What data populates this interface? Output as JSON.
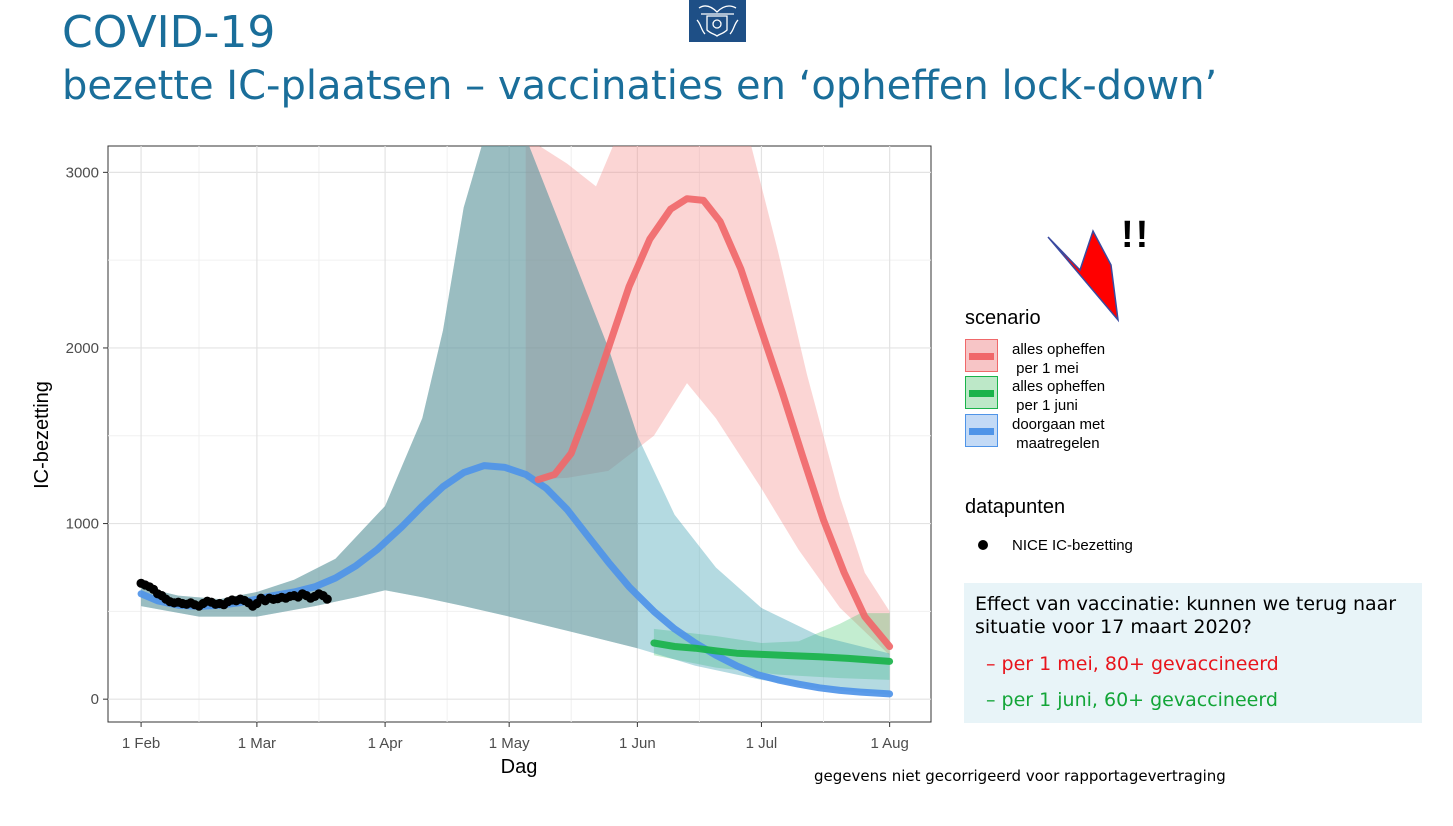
{
  "header": {
    "title": "COVID-19",
    "subtitle": "bezette IC-plaatsen – vaccinaties en ‘opheffen lock-down’"
  },
  "chart_data": {
    "type": "line",
    "xlabel": "Dag",
    "ylabel": "IC-bezetting",
    "x_ticks": [
      "1 Feb",
      "1 Mar",
      "1 Apr",
      "1 May",
      "1 Jun",
      "1 Jul",
      "1 Aug"
    ],
    "y_ticks": [
      0,
      1000,
      2000,
      3000
    ],
    "ylim": [
      -130,
      3150
    ],
    "xlim": [
      "2021-01-24",
      "2021-08-11"
    ],
    "grid": true,
    "series": [
      {
        "name": "doorgaan met maatregelen",
        "color": "#4f94e8",
        "points": [
          [
            "2021-02-01",
            600
          ],
          [
            "2021-02-05",
            560
          ],
          [
            "2021-02-10",
            535
          ],
          [
            "2021-02-15",
            528
          ],
          [
            "2021-02-20",
            535
          ],
          [
            "2021-02-25",
            550
          ],
          [
            "2021-03-01",
            570
          ],
          [
            "2021-03-05",
            590
          ],
          [
            "2021-03-10",
            610
          ],
          [
            "2021-03-15",
            640
          ],
          [
            "2021-03-20",
            690
          ],
          [
            "2021-03-25",
            760
          ],
          [
            "2021-03-30",
            850
          ],
          [
            "2021-04-05",
            980
          ],
          [
            "2021-04-10",
            1100
          ],
          [
            "2021-04-15",
            1210
          ],
          [
            "2021-04-20",
            1290
          ],
          [
            "2021-04-25",
            1330
          ],
          [
            "2021-04-30",
            1320
          ],
          [
            "2021-05-05",
            1280
          ],
          [
            "2021-05-10",
            1200
          ],
          [
            "2021-05-15",
            1080
          ],
          [
            "2021-05-20",
            930
          ],
          [
            "2021-05-25",
            780
          ],
          [
            "2021-05-30",
            640
          ],
          [
            "2021-06-05",
            500
          ],
          [
            "2021-06-10",
            400
          ],
          [
            "2021-06-15",
            320
          ],
          [
            "2021-06-20",
            250
          ],
          [
            "2021-06-25",
            190
          ],
          [
            "2021-06-30",
            140
          ],
          [
            "2021-07-05",
            110
          ],
          [
            "2021-07-10",
            85
          ],
          [
            "2021-07-15",
            65
          ],
          [
            "2021-07-20",
            50
          ],
          [
            "2021-07-25",
            40
          ],
          [
            "2021-08-01",
            30
          ]
        ],
        "band_lower": [
          [
            "2021-02-01",
            530
          ],
          [
            "2021-02-15",
            470
          ],
          [
            "2021-03-01",
            470
          ],
          [
            "2021-03-15",
            530
          ],
          [
            "2021-03-25",
            580
          ],
          [
            "2021-04-01",
            620
          ],
          [
            "2021-04-10",
            580
          ],
          [
            "2021-04-20",
            530
          ],
          [
            "2021-05-01",
            470
          ],
          [
            "2021-05-15",
            390
          ],
          [
            "2021-06-01",
            290
          ],
          [
            "2021-06-15",
            190
          ],
          [
            "2021-07-01",
            110
          ],
          [
            "2021-07-15",
            60
          ],
          [
            "2021-08-01",
            25
          ]
        ],
        "band_upper": [
          [
            "2021-02-01",
            640
          ],
          [
            "2021-02-10",
            590
          ],
          [
            "2021-02-20",
            570
          ],
          [
            "2021-03-01",
            610
          ],
          [
            "2021-03-10",
            680
          ],
          [
            "2021-03-20",
            800
          ],
          [
            "2021-04-01",
            1100
          ],
          [
            "2021-04-10",
            1600
          ],
          [
            "2021-04-15",
            2100
          ],
          [
            "2021-04-20",
            2800
          ],
          [
            "2021-04-25",
            3200
          ],
          [
            "2021-05-05",
            3200
          ],
          [
            "2021-05-15",
            2600
          ],
          [
            "2021-05-25",
            2000
          ],
          [
            "2021-06-01",
            1500
          ],
          [
            "2021-06-10",
            1050
          ],
          [
            "2021-06-20",
            750
          ],
          [
            "2021-07-01",
            520
          ],
          [
            "2021-07-15",
            360
          ],
          [
            "2021-08-01",
            260
          ]
        ]
      },
      {
        "name": "alles opheffen per 1 mei",
        "color": "#f0686a",
        "points": [
          [
            "2021-05-08",
            1250
          ],
          [
            "2021-05-12",
            1280
          ],
          [
            "2021-05-16",
            1400
          ],
          [
            "2021-05-20",
            1650
          ],
          [
            "2021-05-25",
            2000
          ],
          [
            "2021-05-30",
            2350
          ],
          [
            "2021-06-04",
            2620
          ],
          [
            "2021-06-09",
            2790
          ],
          [
            "2021-06-13",
            2850
          ],
          [
            "2021-06-17",
            2840
          ],
          [
            "2021-06-21",
            2720
          ],
          [
            "2021-06-26",
            2450
          ],
          [
            "2021-07-01",
            2100
          ],
          [
            "2021-07-06",
            1750
          ],
          [
            "2021-07-11",
            1380
          ],
          [
            "2021-07-16",
            1020
          ],
          [
            "2021-07-21",
            720
          ],
          [
            "2021-07-26",
            470
          ],
          [
            "2021-08-01",
            300
          ]
        ],
        "band_lower": [
          [
            "2021-05-05",
            1250
          ],
          [
            "2021-05-15",
            1260
          ],
          [
            "2021-05-25",
            1300
          ],
          [
            "2021-06-05",
            1500
          ],
          [
            "2021-06-13",
            1800
          ],
          [
            "2021-06-20",
            1600
          ],
          [
            "2021-07-01",
            1200
          ],
          [
            "2021-07-10",
            850
          ],
          [
            "2021-07-20",
            520
          ],
          [
            "2021-08-01",
            250
          ]
        ],
        "band_upper": [
          [
            "2021-05-05",
            3200
          ],
          [
            "2021-05-15",
            3050
          ],
          [
            "2021-05-22",
            2920
          ],
          [
            "2021-05-27",
            3200
          ],
          [
            "2021-06-28",
            3200
          ],
          [
            "2021-07-05",
            2550
          ],
          [
            "2021-07-12",
            1850
          ],
          [
            "2021-07-20",
            1150
          ],
          [
            "2021-07-26",
            720
          ],
          [
            "2021-08-01",
            500
          ]
        ]
      },
      {
        "name": "alles opheffen per 1 juni",
        "color": "#1ab34a",
        "points": [
          [
            "2021-06-05",
            320
          ],
          [
            "2021-06-10",
            300
          ],
          [
            "2021-06-15",
            290
          ],
          [
            "2021-06-20",
            275
          ],
          [
            "2021-06-25",
            262
          ],
          [
            "2021-07-01",
            255
          ],
          [
            "2021-07-08",
            248
          ],
          [
            "2021-07-15",
            242
          ],
          [
            "2021-07-22",
            232
          ],
          [
            "2021-08-01",
            215
          ]
        ],
        "band_lower": [
          [
            "2021-06-05",
            250
          ],
          [
            "2021-06-20",
            180
          ],
          [
            "2021-07-05",
            140
          ],
          [
            "2021-07-20",
            120
          ],
          [
            "2021-08-01",
            110
          ]
        ],
        "band_upper": [
          [
            "2021-06-05",
            400
          ],
          [
            "2021-06-20",
            360
          ],
          [
            "2021-07-01",
            320
          ],
          [
            "2021-07-10",
            330
          ],
          [
            "2021-07-20",
            430
          ],
          [
            "2021-07-25",
            490
          ],
          [
            "2021-08-01",
            490
          ]
        ]
      }
    ],
    "datapoints": {
      "name": "NICE IC-bezetting",
      "color": "#000000",
      "points": [
        [
          "2021-02-01",
          660
        ],
        [
          "2021-02-02",
          650
        ],
        [
          "2021-02-03",
          640
        ],
        [
          "2021-02-04",
          625
        ],
        [
          "2021-02-05",
          600
        ],
        [
          "2021-02-06",
          590
        ],
        [
          "2021-02-07",
          570
        ],
        [
          "2021-02-08",
          555
        ],
        [
          "2021-02-09",
          548
        ],
        [
          "2021-02-10",
          552
        ],
        [
          "2021-02-11",
          545
        ],
        [
          "2021-02-12",
          540
        ],
        [
          "2021-02-13",
          548
        ],
        [
          "2021-02-14",
          538
        ],
        [
          "2021-02-15",
          530
        ],
        [
          "2021-02-16",
          545
        ],
        [
          "2021-02-17",
          558
        ],
        [
          "2021-02-18",
          552
        ],
        [
          "2021-02-19",
          540
        ],
        [
          "2021-02-20",
          545
        ],
        [
          "2021-02-21",
          538
        ],
        [
          "2021-02-22",
          555
        ],
        [
          "2021-02-23",
          565
        ],
        [
          "2021-02-24",
          560
        ],
        [
          "2021-02-25",
          570
        ],
        [
          "2021-02-26",
          562
        ],
        [
          "2021-02-27",
          548
        ],
        [
          "2021-02-28",
          530
        ],
        [
          "2021-03-01",
          545
        ],
        [
          "2021-03-02",
          575
        ],
        [
          "2021-03-03",
          560
        ],
        [
          "2021-03-04",
          575
        ],
        [
          "2021-03-05",
          568
        ],
        [
          "2021-03-06",
          572
        ],
        [
          "2021-03-07",
          580
        ],
        [
          "2021-03-08",
          575
        ],
        [
          "2021-03-09",
          585
        ],
        [
          "2021-03-10",
          590
        ],
        [
          "2021-03-11",
          582
        ],
        [
          "2021-03-12",
          600
        ],
        [
          "2021-03-13",
          590
        ],
        [
          "2021-03-14",
          575
        ],
        [
          "2021-03-15",
          585
        ],
        [
          "2021-03-16",
          600
        ],
        [
          "2021-03-17",
          590
        ],
        [
          "2021-03-18",
          570
        ]
      ]
    }
  },
  "legend": {
    "scenario_title": "scenario",
    "items": [
      {
        "label": "alles opheffen\n per 1 mei",
        "color": "#f0686a",
        "fill": "#f7c5c6"
      },
      {
        "label": "alles opheffen\n per 1 juni",
        "color": "#1ab34a",
        "fill": "#bde8c8"
      },
      {
        "label": "doorgaan met\n maatregelen",
        "color": "#4f94e8",
        "fill": "#c3daf6"
      }
    ],
    "data_title": "datapunten",
    "data_label": "NICE IC-bezetting"
  },
  "annotation": {
    "exclaim": "!!",
    "arrow_color": "#ff0000"
  },
  "info": {
    "main": "Effect van vaccinatie: kunnen we terug naar situatie voor 17 maart 2020?",
    "line1": "– per 1 mei, 80+ gevaccineerd",
    "line1_color": "#e8141c",
    "line2": "– per 1 juni, 60+ gevaccineerd",
    "line2_color": "#13a538"
  },
  "footnote": "gegevens niet gecorrigeerd voor rapportagevertraging"
}
